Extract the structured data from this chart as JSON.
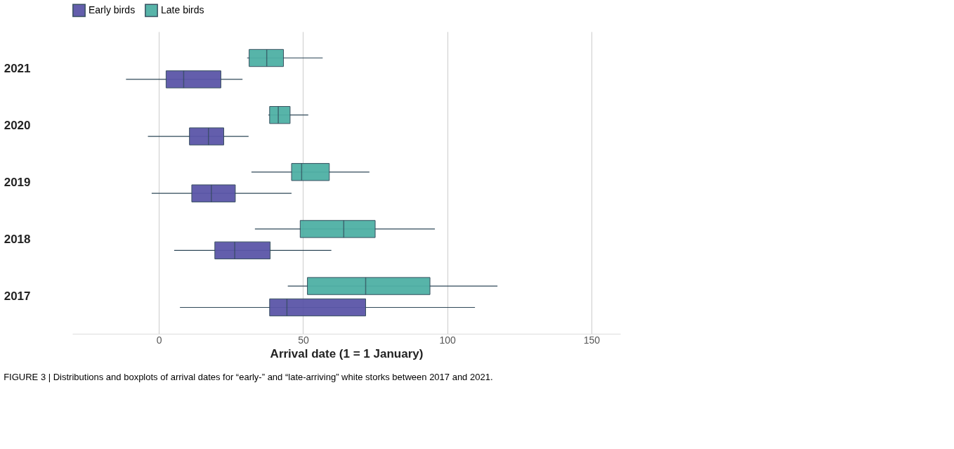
{
  "chart_data": {
    "type": "box",
    "orientation": "horizontal",
    "xlabel": "Arrival date (1 = 1 January)",
    "categories": [
      "2021",
      "2020",
      "2019",
      "2018",
      "2017"
    ],
    "series": [
      {
        "name": "Early birds",
        "color": "#5b56a8",
        "boxes": [
          {
            "low": -11.4,
            "q1": 2.5,
            "median": 8.6,
            "q3": 21.5,
            "high": 29
          },
          {
            "low": -3.8,
            "q1": 10.6,
            "median": 17.2,
            "q3": 22.5,
            "high": 31.1
          },
          {
            "low": -2.5,
            "q1": 11.4,
            "median": 18.2,
            "q3": 26.5,
            "high": 46
          },
          {
            "low": 5.3,
            "q1": 19.4,
            "median": 26.3,
            "q3": 38.6,
            "high": 59.8
          },
          {
            "low": 7.3,
            "q1": 38.4,
            "median": 44.4,
            "q3": 71.7,
            "high": 109.6
          }
        ]
      },
      {
        "name": "Late birds",
        "color": "#4fb0a5",
        "boxes": [
          {
            "low": 30.6,
            "q1": 31.3,
            "median": 37.4,
            "q3": 43.2,
            "high": 56.8
          },
          {
            "low": 38,
            "q1": 38.4,
            "median": 41.4,
            "q3": 45.5,
            "high": 51.8
          },
          {
            "low": 32.1,
            "q1": 46,
            "median": 49.5,
            "q3": 59.1,
            "high": 73
          },
          {
            "low": 33.3,
            "q1": 49,
            "median": 64.1,
            "q3": 75,
            "high": 95.7
          },
          {
            "low": 44.7,
            "q1": 51.5,
            "median": 71.7,
            "q3": 94,
            "high": 117.4
          }
        ]
      }
    ],
    "xlim": [
      -30,
      160
    ],
    "xticks": [
      0,
      50,
      100,
      150
    ],
    "grid": "x",
    "legend": "top",
    "annotations": [
      "FIGURE 3 | Distributions and boxplots of arrival dates for “early-” and “late-arriving” white storks between 2017 and 2021."
    ]
  }
}
